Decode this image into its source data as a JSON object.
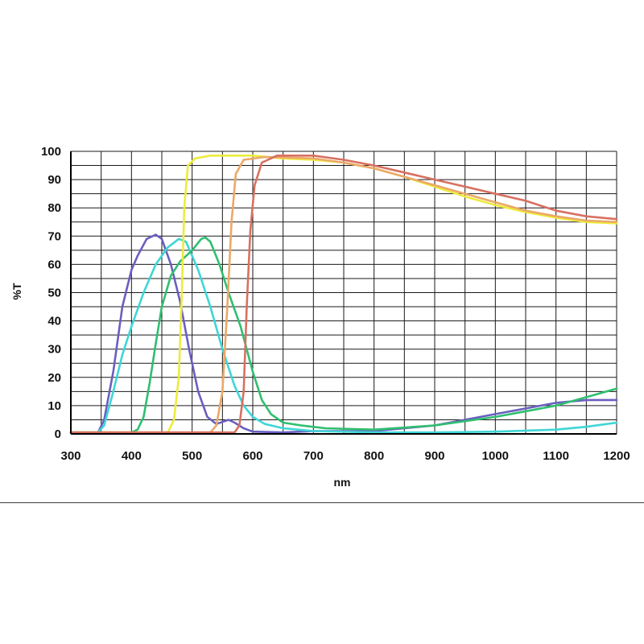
{
  "chart_data": {
    "type": "line",
    "title": "",
    "xlabel": "nm",
    "ylabel": "%T",
    "xlim": [
      300,
      1200
    ],
    "ylim": [
      0,
      100
    ],
    "x_ticks": [
      300,
      400,
      500,
      600,
      700,
      800,
      900,
      1000,
      1100,
      1200
    ],
    "y_ticks": [
      0,
      10,
      20,
      30,
      40,
      50,
      60,
      70,
      80,
      90,
      100
    ],
    "grid": true,
    "legend": "none",
    "series": [
      {
        "color": "#6a5fc0",
        "points": [
          [
            300,
            0.5
          ],
          [
            345,
            0.5
          ],
          [
            355,
            5
          ],
          [
            370,
            22
          ],
          [
            385,
            45
          ],
          [
            400,
            58
          ],
          [
            410,
            63
          ],
          [
            425,
            69
          ],
          [
            440,
            70.5
          ],
          [
            450,
            69
          ],
          [
            465,
            60
          ],
          [
            480,
            47
          ],
          [
            495,
            30
          ],
          [
            510,
            15
          ],
          [
            525,
            6
          ],
          [
            540,
            3.5
          ],
          [
            560,
            5
          ],
          [
            570,
            4
          ],
          [
            585,
            2
          ],
          [
            600,
            0.8
          ],
          [
            650,
            0.5
          ],
          [
            700,
            1
          ],
          [
            800,
            1
          ],
          [
            900,
            3
          ],
          [
            1000,
            7
          ],
          [
            1100,
            11
          ],
          [
            1150,
            12
          ],
          [
            1200,
            12
          ]
        ]
      },
      {
        "color": "#3fd6d6",
        "points": [
          [
            300,
            0.5
          ],
          [
            345,
            0.5
          ],
          [
            355,
            3
          ],
          [
            370,
            15
          ],
          [
            385,
            28
          ],
          [
            400,
            38
          ],
          [
            420,
            50
          ],
          [
            440,
            60
          ],
          [
            460,
            66
          ],
          [
            478,
            69
          ],
          [
            490,
            68
          ],
          [
            510,
            58
          ],
          [
            530,
            45
          ],
          [
            550,
            30
          ],
          [
            570,
            17
          ],
          [
            585,
            10
          ],
          [
            600,
            6
          ],
          [
            620,
            3.5
          ],
          [
            650,
            2
          ],
          [
            700,
            1
          ],
          [
            800,
            0.5
          ],
          [
            900,
            0.5
          ],
          [
            1000,
            0.8
          ],
          [
            1100,
            1.5
          ],
          [
            1150,
            2.5
          ],
          [
            1200,
            4
          ]
        ]
      },
      {
        "color": "#2fbf6f",
        "points": [
          [
            300,
            0.5
          ],
          [
            400,
            0.5
          ],
          [
            410,
            1.5
          ],
          [
            420,
            6
          ],
          [
            430,
            18
          ],
          [
            440,
            32
          ],
          [
            450,
            45
          ],
          [
            465,
            56
          ],
          [
            480,
            61
          ],
          [
            500,
            65
          ],
          [
            515,
            69
          ],
          [
            522,
            69.5
          ],
          [
            530,
            68
          ],
          [
            545,
            60
          ],
          [
            560,
            50
          ],
          [
            580,
            38
          ],
          [
            600,
            22
          ],
          [
            615,
            12
          ],
          [
            630,
            7
          ],
          [
            650,
            4
          ],
          [
            680,
            3
          ],
          [
            720,
            2
          ],
          [
            800,
            1.5
          ],
          [
            900,
            3
          ],
          [
            1000,
            6
          ],
          [
            1100,
            10
          ],
          [
            1150,
            13
          ],
          [
            1200,
            16
          ]
        ]
      },
      {
        "color": "#ecec3c",
        "points": [
          [
            300,
            0.5
          ],
          [
            460,
            0.5
          ],
          [
            470,
            5
          ],
          [
            478,
            20
          ],
          [
            483,
            50
          ],
          [
            487,
            80
          ],
          [
            493,
            95
          ],
          [
            505,
            97.5
          ],
          [
            530,
            98.5
          ],
          [
            600,
            98.5
          ],
          [
            650,
            97.5
          ],
          [
            700,
            97
          ],
          [
            750,
            96
          ],
          [
            800,
            94
          ],
          [
            850,
            91
          ],
          [
            900,
            87.5
          ],
          [
            950,
            84
          ],
          [
            1000,
            81
          ],
          [
            1050,
            78.5
          ],
          [
            1100,
            76.5
          ],
          [
            1150,
            75
          ],
          [
            1200,
            74.5
          ]
        ]
      },
      {
        "color": "#eca868",
        "points": [
          [
            300,
            0.5
          ],
          [
            530,
            0.5
          ],
          [
            540,
            3
          ],
          [
            550,
            15
          ],
          [
            558,
            45
          ],
          [
            565,
            75
          ],
          [
            572,
            92
          ],
          [
            585,
            97
          ],
          [
            620,
            98
          ],
          [
            700,
            97.5
          ],
          [
            750,
            96
          ],
          [
            800,
            94
          ],
          [
            850,
            91
          ],
          [
            900,
            88
          ],
          [
            950,
            85
          ],
          [
            1000,
            82
          ],
          [
            1050,
            79
          ],
          [
            1100,
            77
          ],
          [
            1150,
            75.5
          ],
          [
            1200,
            75
          ]
        ]
      },
      {
        "color": "#d87060",
        "points": [
          [
            300,
            0.5
          ],
          [
            570,
            0.5
          ],
          [
            578,
            3
          ],
          [
            585,
            15
          ],
          [
            590,
            45
          ],
          [
            596,
            72
          ],
          [
            603,
            88
          ],
          [
            615,
            96
          ],
          [
            640,
            98.5
          ],
          [
            700,
            98.5
          ],
          [
            750,
            97
          ],
          [
            800,
            95
          ],
          [
            850,
            92.5
          ],
          [
            900,
            90
          ],
          [
            950,
            87.5
          ],
          [
            1000,
            85
          ],
          [
            1050,
            82.5
          ],
          [
            1100,
            79
          ],
          [
            1150,
            77
          ],
          [
            1200,
            76
          ]
        ]
      }
    ]
  }
}
